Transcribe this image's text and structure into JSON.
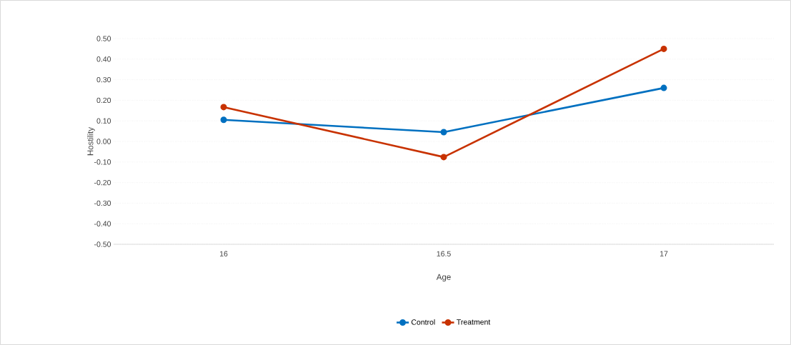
{
  "chart_data": {
    "type": "line",
    "xlabel": "Age",
    "ylabel": "Hostility",
    "categories": [
      "16",
      "16.5",
      "17"
    ],
    "series": [
      {
        "name": "Control",
        "color": "#0070c0",
        "values": [
          0.105,
          0.045,
          0.26
        ]
      },
      {
        "name": "Treatment",
        "color": "#c83200",
        "values": [
          0.167,
          -0.076,
          0.45
        ]
      }
    ],
    "ylim": [
      -0.5,
      0.5
    ],
    "yticks": [
      {
        "value": -0.5,
        "label": "-0.50"
      },
      {
        "value": -0.4,
        "label": "-0.40"
      },
      {
        "value": -0.3,
        "label": "-0.30"
      },
      {
        "value": -0.2,
        "label": "-0.20"
      },
      {
        "value": -0.1,
        "label": "-0.10"
      },
      {
        "value": 0,
        "label": "0.00"
      },
      {
        "value": 0.1,
        "label": "0.10"
      },
      {
        "value": 0.2,
        "label": "0.20"
      },
      {
        "value": 0.3,
        "label": "0.30"
      },
      {
        "value": 0.4,
        "label": "0.40"
      },
      {
        "value": 0.5,
        "label": "0.50"
      }
    ],
    "grid": "y",
    "legend": "bottom",
    "marker": "circle",
    "line_style": "solid"
  }
}
